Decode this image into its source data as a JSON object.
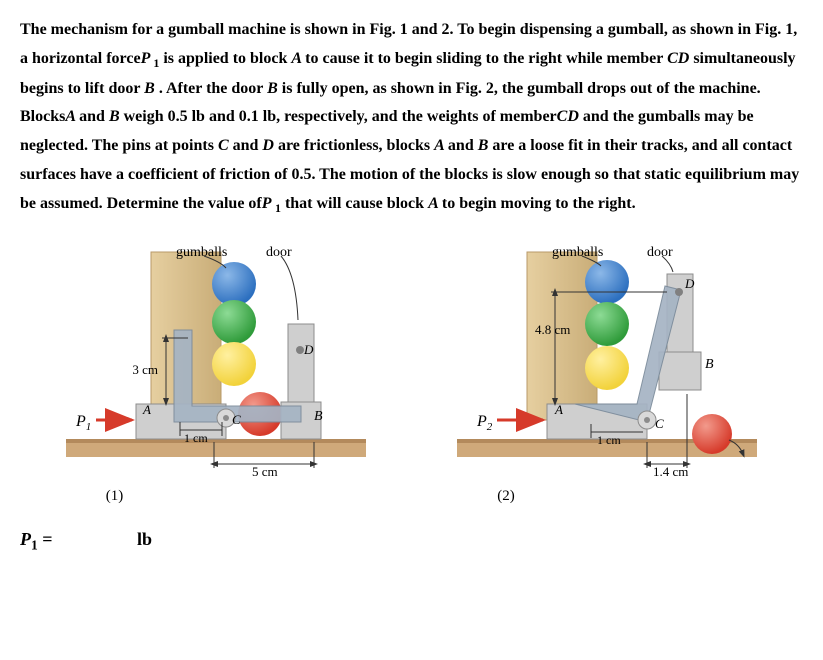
{
  "problem": {
    "segments": [
      {
        "t": "The mechanism for a gumball machine is shown in Fig. 1 and 2. To begin dispensing a gumball, as shown in Fig. 1, a horizontal force",
        "i": false
      },
      {
        "t": "P",
        "i": true
      },
      {
        "t": " 1",
        "sub": true
      },
      {
        "t": " is applied to block ",
        "i": false
      },
      {
        "t": "A ",
        "i": true
      },
      {
        "t": " to cause it to begin sliding to the right while member ",
        "i": false
      },
      {
        "t": "CD ",
        "i": true
      },
      {
        "t": " simultaneously begins to lift door ",
        "i": false
      },
      {
        "t": "B ",
        "i": true
      },
      {
        "t": ". After the door ",
        "i": false
      },
      {
        "t": "B ",
        "i": true
      },
      {
        "t": "is fully open, as shown in Fig. 2, the gumball drops out of the machine. Blocks",
        "i": false
      },
      {
        "t": "A ",
        "i": true
      },
      {
        "t": " and ",
        "i": false
      },
      {
        "t": "B ",
        "i": true
      },
      {
        "t": " weigh 0.5 lb and 0.1 lb, respectively, and the weights of member",
        "i": false
      },
      {
        "t": "CD ",
        "i": true
      },
      {
        "t": " and the gumballs may be neglected. The pins at points",
        "i": false
      },
      {
        "t": " C ",
        "i": true
      },
      {
        "t": " and ",
        "i": false
      },
      {
        "t": "D ",
        "i": true
      },
      {
        "t": " are frictionless, blocks ",
        "i": false
      },
      {
        "t": "A ",
        "i": true
      },
      {
        "t": " and ",
        "i": false
      },
      {
        "t": "B ",
        "i": true
      },
      {
        "t": " are a loose fit in their tracks, and all contact surfaces have a coefficient of friction of 0.5. The motion of the blocks is slow enough so that static equilibrium may be assumed. Determine the value of",
        "i": false
      },
      {
        "t": "P ",
        "i": true
      },
      {
        "t": "1",
        "sub": true
      },
      {
        "t": " that will cause block ",
        "i": false
      },
      {
        "t": "A ",
        "i": true
      },
      {
        "t": " to begin moving to the right.",
        "i": false
      }
    ]
  },
  "labels": {
    "gumballs": "gumballs",
    "door": "door",
    "P1": "P",
    "P1sub": "1",
    "P2": "P",
    "P2sub": "2",
    "A": "A",
    "B": "B",
    "C": "C",
    "D": "D",
    "fig1": "(1)",
    "fig2": "(2)",
    "dim3cm": "3 cm",
    "dim1cm": "1 cm",
    "dim5cm": "5 cm",
    "dim48cm": "4.8 cm",
    "dim14cm": "1.4 cm"
  },
  "answer": {
    "varBase": "P",
    "varSub": "1",
    "eq": " =",
    "unit": "lb"
  },
  "colors": {
    "floor": "#cfa97a",
    "floorShadow": "#b38a5c",
    "machine1": "#e2c79a",
    "machine2": "#d1b482",
    "blockFill": "#cfcfcf",
    "blockStroke": "#8c8c8c",
    "memberFill": "#a5b4c4",
    "memberStroke": "#7a8a9a",
    "pinFill": "#d9d9d9",
    "ball1": "#2c6fbf",
    "ball2": "#2f9b3a",
    "ball3": "#f2d23a",
    "ball4": "#d63a2a",
    "arrow": "#d63a2a",
    "dimLine": "#333333",
    "white": "#ffffff"
  },
  "style": {
    "bodyFont": "Times New Roman",
    "bodyFontSizePx": 16,
    "figLabelFontSizePx": 14
  }
}
